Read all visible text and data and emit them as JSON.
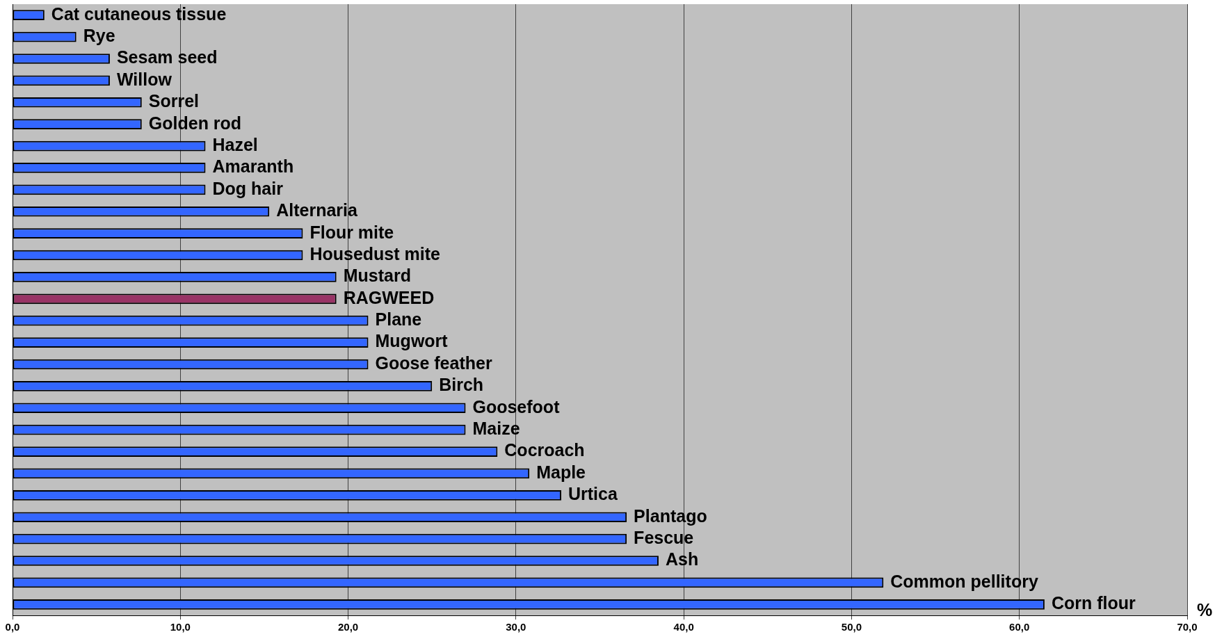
{
  "chart_data": {
    "type": "bar",
    "orientation": "horizontal",
    "xlabel": "%",
    "categories": [
      "Cat cutaneous tissue",
      "Rye",
      "Sesam seed",
      "Willow",
      "Sorrel",
      "Golden rod",
      "Hazel",
      "Amaranth",
      "Dog hair",
      "Alternaria",
      "Flour mite",
      "Housedust mite",
      "Mustard",
      "RAGWEED",
      "Plane",
      "Mugwort",
      "Goose feather",
      "Birch",
      "Goosefoot",
      "Maize",
      "Cocroach",
      "Maple",
      "Urtica",
      "Plantago",
      "Fescue",
      "Ash",
      "Common pellitory",
      "Corn flour"
    ],
    "values": [
      1.9,
      3.8,
      5.8,
      5.8,
      7.7,
      7.7,
      11.5,
      11.5,
      11.5,
      15.3,
      17.3,
      17.3,
      19.3,
      19.3,
      21.2,
      21.2,
      21.2,
      25.0,
      27.0,
      27.0,
      28.9,
      30.8,
      32.7,
      36.6,
      36.6,
      38.5,
      51.9,
      61.5
    ],
    "colors": [
      "#3366ff",
      "#3366ff",
      "#3366ff",
      "#3366ff",
      "#3366ff",
      "#3366ff",
      "#3366ff",
      "#3366ff",
      "#3366ff",
      "#3366ff",
      "#3366ff",
      "#3366ff",
      "#3366ff",
      "#993366",
      "#3366ff",
      "#3366ff",
      "#3366ff",
      "#3366ff",
      "#3366ff",
      "#3366ff",
      "#3366ff",
      "#3366ff",
      "#3366ff",
      "#3366ff",
      "#3366ff",
      "#3366ff",
      "#3366ff",
      "#3366ff"
    ],
    "xlim": [
      0,
      70
    ],
    "xticks": [
      {
        "value": 0,
        "label": "0,0"
      },
      {
        "value": 10,
        "label": "10,0"
      },
      {
        "value": 20,
        "label": "20,0"
      },
      {
        "value": 30,
        "label": "30,0"
      },
      {
        "value": 40,
        "label": "40,0"
      },
      {
        "value": 50,
        "label": "50,0"
      },
      {
        "value": 60,
        "label": "60,0"
      },
      {
        "value": 70,
        "label": "70,0"
      }
    ],
    "grid": "x",
    "tick_labels": "x",
    "legend": false
  }
}
